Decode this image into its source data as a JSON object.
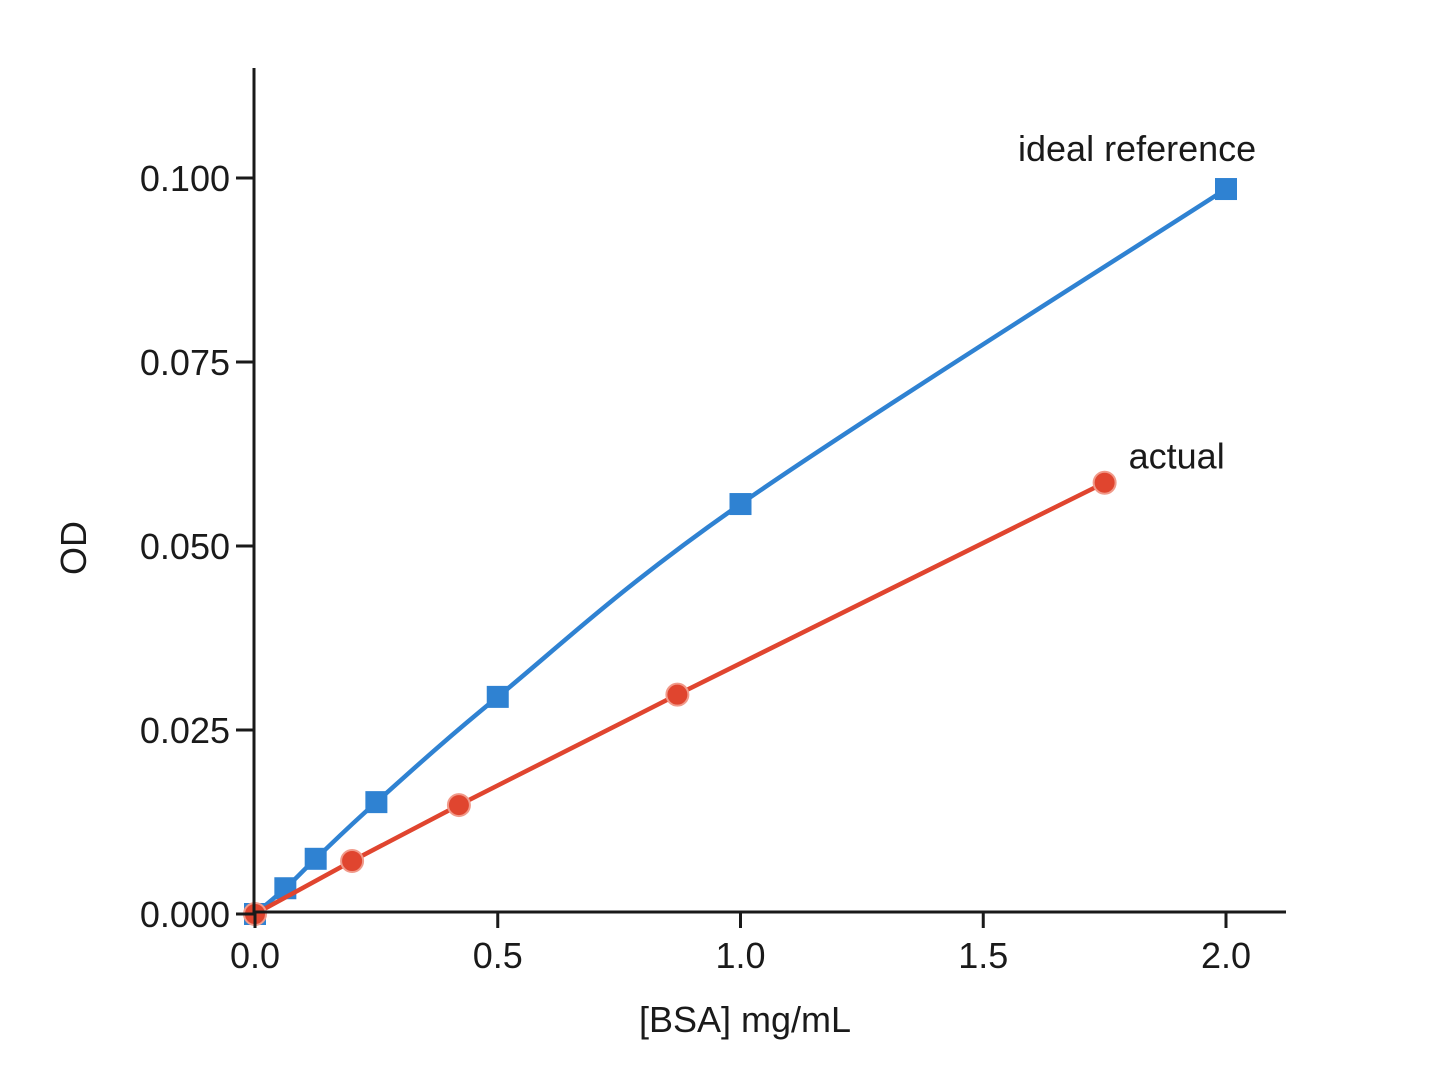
{
  "chart_data": {
    "type": "line",
    "title": "",
    "xlabel": "[BSA] mg/mL",
    "ylabel": "OD",
    "xlim": [
      0.0,
      2.1
    ],
    "ylim": [
      0.0,
      0.115
    ],
    "x_ticks": [
      0.0,
      0.5,
      1.0,
      1.5,
      2.0
    ],
    "x_tick_labels": [
      "0.0",
      "0.5",
      "1.0",
      "1.5",
      "2.0"
    ],
    "y_ticks": [
      0.0,
      0.025,
      0.05,
      0.075,
      0.1
    ],
    "y_tick_labels": [
      "0.000",
      "0.025",
      "0.050",
      "0.075",
      "0.100"
    ],
    "grid": false,
    "legend": "none",
    "series": [
      {
        "name": "ideal reference",
        "color": "#2f82d2",
        "marker": "square",
        "smooth": true,
        "x": [
          0.0,
          0.0625,
          0.125,
          0.25,
          0.5,
          1.0,
          2.0
        ],
        "y": [
          0.0,
          0.0035,
          0.0075,
          0.0152,
          0.0295,
          0.0557,
          0.0985
        ]
      },
      {
        "name": "actual",
        "color": "#e0452f",
        "marker": "circle",
        "smooth": false,
        "x": [
          0.0,
          0.2,
          0.42,
          0.87,
          1.75
        ],
        "y": [
          0.0,
          0.0072,
          0.0148,
          0.0298,
          0.0586
        ]
      }
    ]
  }
}
